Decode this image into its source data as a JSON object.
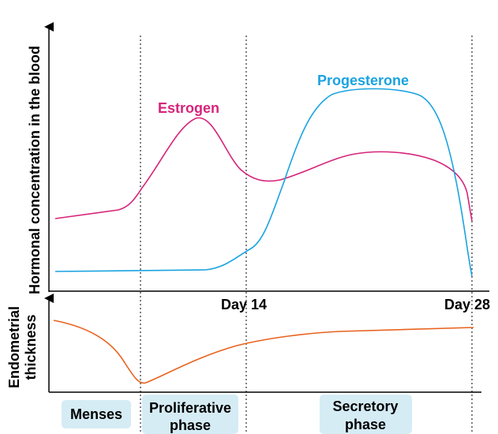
{
  "y_axis_label": "Hormonal concentration in the blood",
  "lower_axis_label": [
    "Endometrial",
    "thickness"
  ],
  "curves": {
    "estrogen": "Estrogen",
    "progesterone": "Progesterone"
  },
  "day_labels": [
    "Day 14",
    "Day 28"
  ],
  "phases": [
    [
      "Menses"
    ],
    [
      "Proliferative",
      "phase"
    ],
    [
      "Secretory",
      "phase"
    ]
  ]
}
